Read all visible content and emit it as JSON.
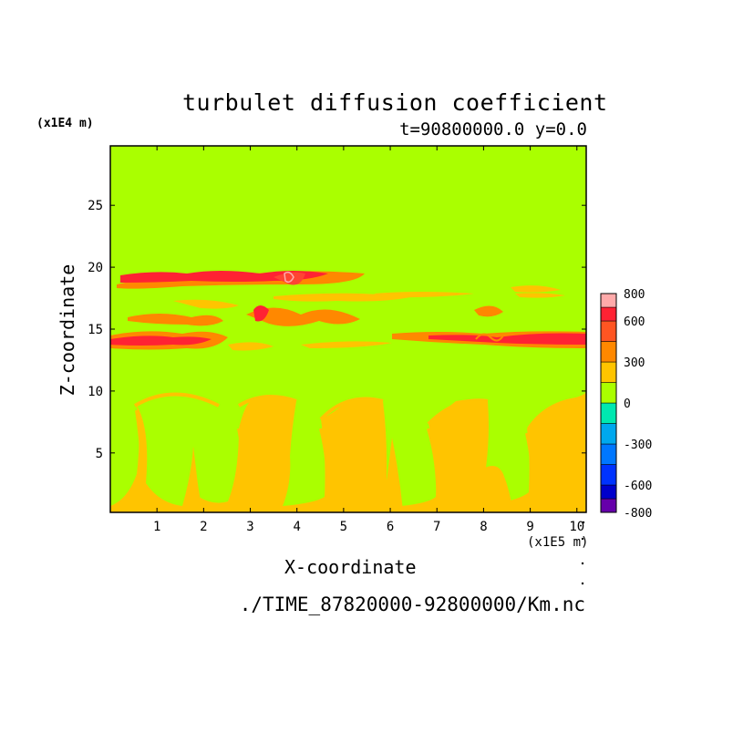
{
  "chart_data": {
    "type": "heatmap",
    "title": "turbulet diffusion coefficient",
    "subtitle": "t=90800000.0 y=0.0",
    "xlabel": "X-coordinate",
    "ylabel": "Z-coordinate",
    "x_unit": "(x1E5 m)",
    "y_unit": "(x1E4 m)",
    "xlim": [
      0,
      10.2
    ],
    "ylim": [
      0.2,
      29.8
    ],
    "x_ticks": [
      1,
      2,
      3,
      4,
      5,
      6,
      7,
      8,
      9,
      10
    ],
    "y_ticks": [
      5,
      10,
      15,
      20,
      25
    ],
    "background_value_band": "0 to 150",
    "colorbar": {
      "levels": [
        -800,
        -700,
        -600,
        -450,
        -300,
        -150,
        0,
        150,
        300,
        450,
        600,
        700,
        800
      ],
      "labels": [
        800,
        600,
        300,
        0,
        -300,
        -600,
        -800
      ],
      "colors": [
        "#6600aa",
        "#0000cc",
        "#0033ff",
        "#0077ff",
        "#00a8ee",
        "#00e8b0",
        "#aaff00",
        "#ffc400",
        "#ff8800",
        "#ff5522",
        "#ff2233",
        "#ffaaaa"
      ]
    },
    "bands": [
      {
        "z_range": [
          18.8,
          19.6
        ],
        "value_range": [
          450,
          700
        ],
        "x_extent": [
          0.2,
          7.3
        ]
      },
      {
        "z_range": [
          15.5,
          17.0
        ],
        "value_range": [
          300,
          600
        ],
        "x_extent": [
          0.4,
          6.8
        ]
      },
      {
        "z_range": [
          13.6,
          14.6
        ],
        "value_range": [
          450,
          700
        ],
        "x_extent": [
          0.0,
          10.2
        ]
      },
      {
        "z_range": [
          0.2,
          9.6
        ],
        "value_range": [
          150,
          300
        ],
        "x_extent": [
          0.5,
          10.2
        ]
      }
    ]
  },
  "filename": "./TIME_87820000-92800000/Km.nc"
}
